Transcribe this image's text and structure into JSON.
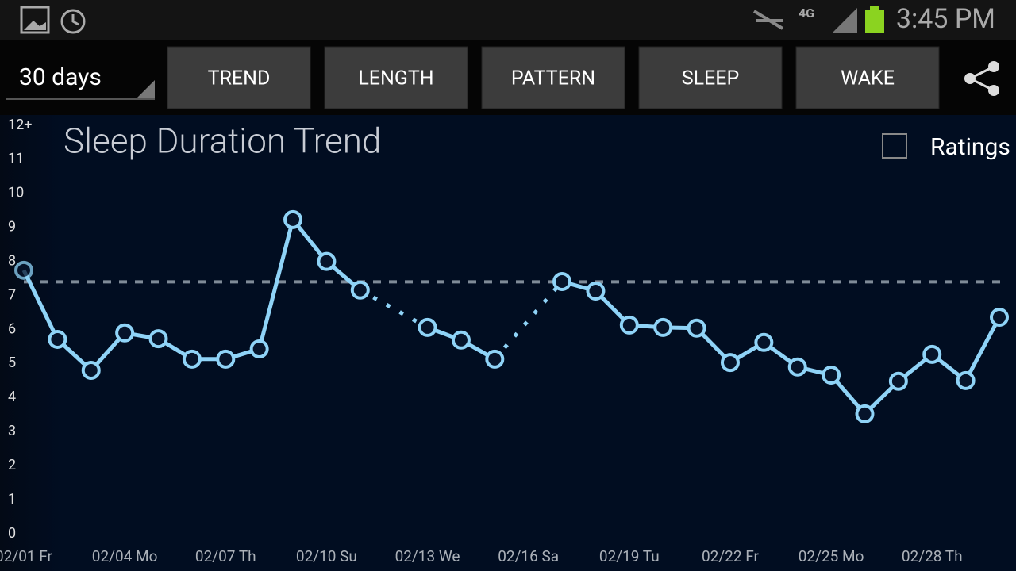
{
  "status_bar": {
    "network": "4G",
    "time": "3:45 PM"
  },
  "toolbar": {
    "range": "30 days",
    "tabs": [
      "TREND",
      "LENGTH",
      "PATTERN",
      "SLEEP",
      "WAKE"
    ]
  },
  "ratings": {
    "label": "Ratings"
  },
  "chart_data": {
    "type": "line",
    "title": "Sleep Duration Trend",
    "categories": [
      "02/01 Fr",
      null,
      null,
      "02/04 Mo",
      null,
      null,
      "02/07 Th",
      null,
      null,
      "02/10 Su",
      null,
      null,
      "02/13 We",
      null,
      null,
      "02/16 Sa",
      null,
      null,
      "02/19 Tu",
      null,
      null,
      "02/22 Fr",
      null,
      null,
      "02/25 Mo",
      null,
      null,
      "02/28 Th",
      null,
      null
    ],
    "values": [
      7.74,
      5.71,
      4.8,
      5.9,
      5.73,
      5.13,
      5.13,
      5.43,
      9.23,
      8.0,
      7.16,
      null,
      6.06,
      5.69,
      5.13,
      null,
      7.41,
      7.13,
      6.13,
      6.06,
      6.04,
      5.03,
      5.62,
      4.9,
      4.66,
      3.52,
      4.48,
      5.27,
      4.5,
      6.36
    ],
    "reference_line": 7.4,
    "color": "#8fd3f7",
    "ylim": [
      0,
      12
    ],
    "yticks": [
      0,
      1,
      2,
      3,
      4,
      5,
      6,
      7,
      8,
      9,
      10,
      11,
      {
        "value": 12,
        "label": "12+"
      }
    ]
  }
}
